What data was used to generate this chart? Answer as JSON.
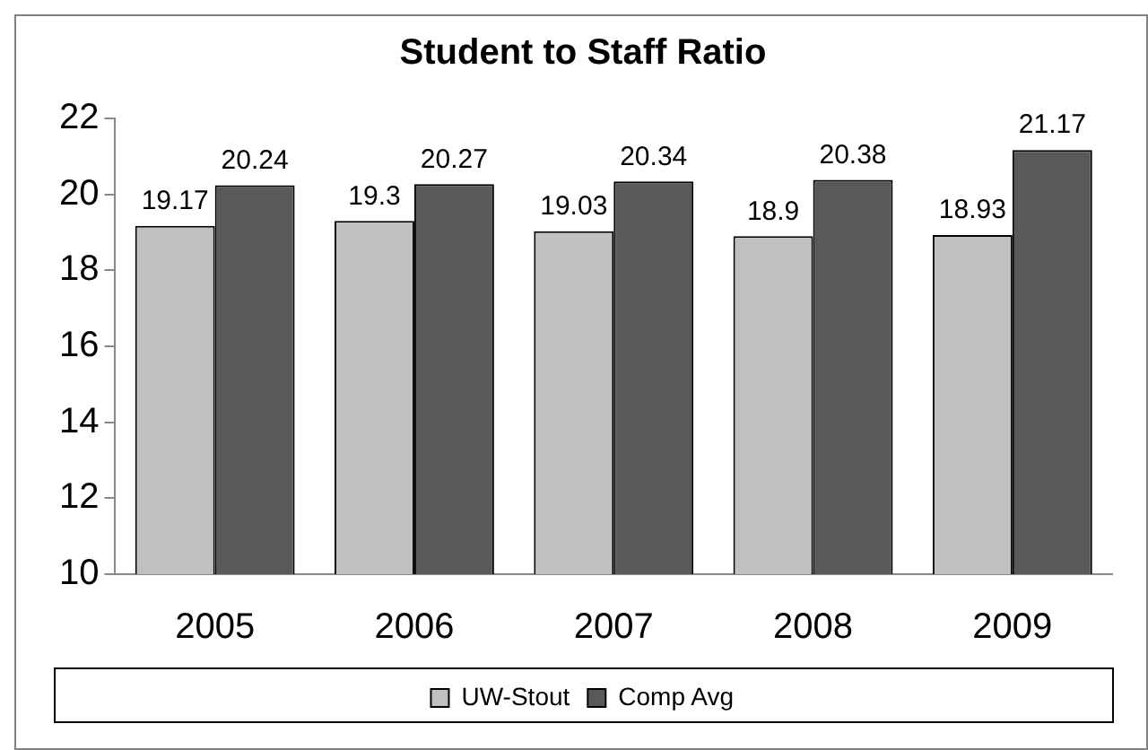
{
  "chart_data": {
    "type": "bar",
    "title": "Student to Staff Ratio",
    "categories": [
      "2005",
      "2006",
      "2007",
      "2008",
      "2009"
    ],
    "series": [
      {
        "name": "UW-Stout",
        "color": "#c0c0c0",
        "values": [
          19.17,
          19.3,
          19.03,
          18.9,
          18.93
        ]
      },
      {
        "name": "Comp Avg",
        "color": "#595959",
        "values": [
          20.24,
          20.27,
          20.34,
          20.38,
          21.17
        ]
      }
    ],
    "ylim": [
      10,
      22
    ],
    "yticks": [
      10,
      12,
      14,
      16,
      18,
      20,
      22
    ],
    "grid": false,
    "legend": "bottom",
    "data_labels": true
  }
}
